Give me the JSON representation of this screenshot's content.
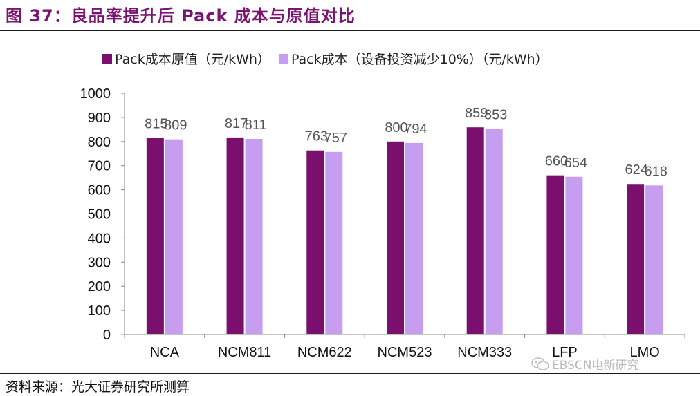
{
  "figure": {
    "title": "图 37：良品率提升后 Pack 成本与原值对比",
    "source": "资料来源：光大证券研究所测算",
    "watermark": "EBSCN电新研究",
    "watermark_icon": "wechat-icon"
  },
  "colors": {
    "title": "#7a1470",
    "series_original": "#7b0f6e",
    "series_reduced": "#c79df0"
  },
  "chart_data": {
    "type": "bar",
    "categories": [
      "NCA",
      "NCM811",
      "NCM622",
      "NCM523",
      "NCM333",
      "LFP",
      "LMO"
    ],
    "series": [
      {
        "name": "Pack成本原值（元/kWh）",
        "values": [
          815,
          817,
          763,
          800,
          859,
          660,
          624
        ]
      },
      {
        "name": "Pack成本（设备投资减少10%）（元/kWh）",
        "values": [
          809,
          811,
          757,
          794,
          853,
          654,
          618
        ]
      }
    ],
    "ylim": [
      0,
      1000
    ],
    "yticks": [
      0,
      100,
      200,
      300,
      400,
      500,
      600,
      700,
      800,
      900,
      1000
    ],
    "legend_position": "top",
    "grid": false,
    "data_labels": true
  }
}
